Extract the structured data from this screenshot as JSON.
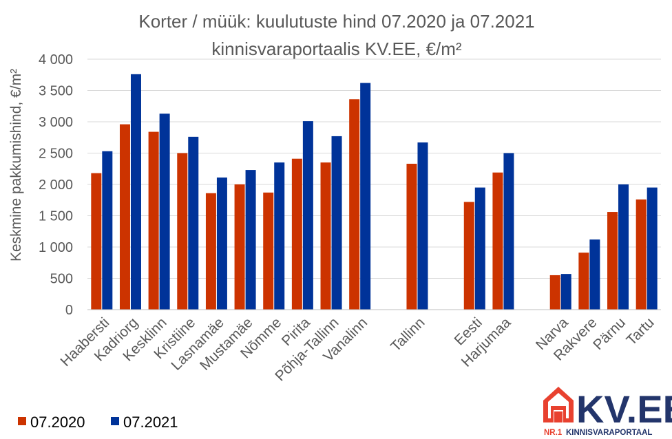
{
  "chart_data": {
    "type": "bar",
    "title_line1": "Korter / müük: kuulutuste hind 07.2020 ja 07.2021",
    "title_line2": "kinnisvaraportaalis KV.EE, €/m²",
    "ylabel": "Keskmine pakkumishind, €/m²",
    "xlabel": "",
    "ylim": [
      0,
      4000
    ],
    "yticks": [
      0,
      500,
      1000,
      1500,
      2000,
      2500,
      3000,
      3500,
      4000
    ],
    "ytick_labels": [
      "0",
      "500",
      "1 000",
      "1 500",
      "2 000",
      "2 500",
      "3 000",
      "3 500",
      "4 000"
    ],
    "grid": true,
    "legend_position": "bottom-left",
    "categories": [
      "Haabersti",
      "Kadriorg",
      "Kesklinn",
      "Kristiine",
      "Lasnamäe",
      "Mustamäe",
      "Nõmme",
      "Pirita",
      "Põhja-Tallinn",
      "Vanalinn",
      "",
      "Tallinn",
      "",
      "Eesti",
      "Harjumaa",
      "",
      "Narva",
      "Rakvere",
      "Pärnu",
      "Tartu"
    ],
    "series": [
      {
        "name": "07.2020",
        "color": "#cc3300",
        "values": [
          2180,
          2960,
          2840,
          2500,
          1860,
          2000,
          1870,
          2410,
          2350,
          3360,
          null,
          2330,
          null,
          1720,
          2190,
          null,
          550,
          910,
          1560,
          1760
        ]
      },
      {
        "name": "07.2021",
        "color": "#003399",
        "values": [
          2530,
          3760,
          3130,
          2760,
          2110,
          2230,
          2350,
          3010,
          2770,
          3620,
          null,
          2670,
          null,
          1950,
          2500,
          null,
          570,
          1120,
          2000,
          1950
        ]
      }
    ]
  },
  "logo": {
    "name": "KV.EE",
    "tagline_a": "NR.1",
    "tagline_b": "KINNISVARAPORTAAL",
    "icon": "house-icon"
  }
}
